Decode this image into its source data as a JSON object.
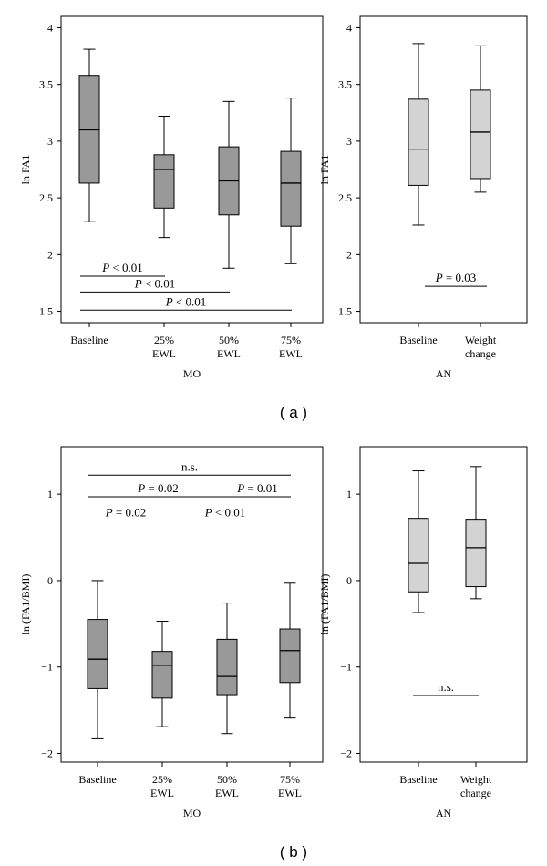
{
  "figure": {
    "label_a": "( a )",
    "label_b": "( b )"
  },
  "chart_data": [
    {
      "type": "box",
      "id": "a-mo",
      "xlabel": "MO",
      "ylabel": "ln FA1",
      "ylim": [
        1.4,
        4.1
      ],
      "yticks": [
        1.5,
        2,
        2.5,
        3,
        3.5,
        4
      ],
      "ytick_labels": [
        "1.5",
        "2",
        "2.5",
        "3",
        "3.5",
        "4"
      ],
      "fill": "#999999",
      "categories": [
        [
          "Baseline"
        ],
        [
          "25%",
          "EWL"
        ],
        [
          "50%",
          "EWL"
        ],
        [
          "75%",
          "EWL"
        ]
      ],
      "boxes": [
        {
          "whislo": 2.29,
          "q1": 2.63,
          "med": 3.1,
          "q3": 3.58,
          "whishi": 3.81
        },
        {
          "whislo": 2.15,
          "q1": 2.41,
          "med": 2.75,
          "q3": 2.88,
          "whishi": 3.22
        },
        {
          "whislo": 1.88,
          "q1": 2.35,
          "med": 2.65,
          "q3": 2.95,
          "whishi": 3.35
        },
        {
          "whislo": 1.92,
          "q1": 2.25,
          "med": 2.63,
          "q3": 2.91,
          "whishi": 3.38
        }
      ],
      "annotations": [
        {
          "from": 0,
          "to": 1,
          "y": 1.81,
          "text": "P < 0.01"
        },
        {
          "from": 0,
          "to": 2,
          "y": 1.67,
          "text": "P < 0.01"
        },
        {
          "from": 0,
          "to": 3,
          "y": 1.51,
          "text": "P < 0.01"
        }
      ]
    },
    {
      "type": "box",
      "id": "a-an",
      "xlabel": "AN",
      "ylabel": "ln FA1",
      "ylim": [
        1.4,
        4.1
      ],
      "yticks": [
        1.5,
        2,
        2.5,
        3,
        3.5,
        4
      ],
      "ytick_labels": [
        "1.5",
        "2",
        "2.5",
        "3",
        "3.5",
        "4"
      ],
      "fill": "#d3d3d3",
      "categories": [
        [
          "Baseline"
        ],
        [
          "Weight",
          "change"
        ]
      ],
      "boxes": [
        {
          "whislo": 2.26,
          "q1": 2.61,
          "med": 2.93,
          "q3": 3.37,
          "whishi": 3.86
        },
        {
          "whislo": 2.55,
          "q1": 2.67,
          "med": 3.08,
          "q3": 3.45,
          "whishi": 3.84
        }
      ],
      "annotations": [
        {
          "from": 0,
          "to": 1,
          "y": 1.72,
          "text": "P = 0.03"
        }
      ]
    },
    {
      "type": "box",
      "id": "b-mo",
      "xlabel": "MO",
      "ylabel": "ln (FA1/BMI)",
      "ylim": [
        -2.1,
        1.55
      ],
      "yticks": [
        -2,
        -1,
        0,
        1
      ],
      "ytick_labels": [
        "−2",
        "−1",
        "0",
        "1"
      ],
      "fill": "#999999",
      "categories": [
        [
          "Baseline"
        ],
        [
          "25%",
          "EWL"
        ],
        [
          "50%",
          "EWL"
        ],
        [
          "75%",
          "EWL"
        ]
      ],
      "boxes": [
        {
          "whislo": -1.83,
          "q1": -1.25,
          "med": -0.91,
          "q3": -0.45,
          "whishi": 0.0
        },
        {
          "whislo": -1.69,
          "q1": -1.36,
          "med": -0.98,
          "q3": -0.82,
          "whishi": -0.47
        },
        {
          "whislo": -1.77,
          "q1": -1.32,
          "med": -1.11,
          "q3": -0.68,
          "whishi": -0.26
        },
        {
          "whislo": -1.59,
          "q1": -1.18,
          "med": -0.81,
          "q3": -0.56,
          "whishi": -0.03
        }
      ],
      "annotations": [
        {
          "from": 0,
          "to": 3,
          "y": 1.22,
          "text": "n.s."
        },
        {
          "from": 0,
          "to": 2,
          "y": 0.97,
          "text": "P = 0.02"
        },
        {
          "from": 2,
          "to": 3,
          "y": 0.97,
          "text": "P = 0.01"
        },
        {
          "from": 0,
          "to": 1,
          "y": 0.69,
          "text": "P = 0.02"
        },
        {
          "from": 1,
          "to": 3,
          "y": 0.69,
          "text": "P < 0.01"
        }
      ]
    },
    {
      "type": "box",
      "id": "b-an",
      "xlabel": "AN",
      "ylabel": "ln (FA1/BMI)",
      "ylim": [
        -2.1,
        1.55
      ],
      "yticks": [
        -2,
        -1,
        0,
        1
      ],
      "ytick_labels": [
        "−2",
        "−1",
        "0",
        "1"
      ],
      "fill": "#d3d3d3",
      "categories": [
        [
          "Baseline"
        ],
        [
          "Weight",
          "change"
        ]
      ],
      "boxes": [
        {
          "whislo": -0.37,
          "q1": -0.13,
          "med": 0.2,
          "q3": 0.72,
          "whishi": 1.27
        },
        {
          "whislo": -0.21,
          "q1": -0.07,
          "med": 0.38,
          "q3": 0.71,
          "whishi": 1.32
        }
      ],
      "annotations": [
        {
          "from": 0,
          "to": 1,
          "y": -1.33,
          "text": "n.s."
        }
      ]
    }
  ]
}
